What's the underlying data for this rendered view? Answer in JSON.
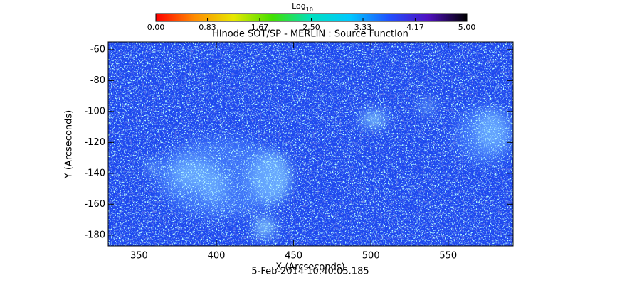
{
  "chart_data": {
    "type": "image",
    "title": "Hinode SOT/SP - MERLIN : Source Function",
    "x_label": "X (Arcseconds)",
    "y_label": "Y (Arcseconds)",
    "footer": "5-Feb-2014 10:40:05.185",
    "xlim": [
      330,
      592
    ],
    "xticks": [
      350,
      400,
      450,
      500,
      550
    ],
    "ylim": [
      -187,
      -55
    ],
    "yticks": [
      -180,
      -160,
      -140,
      -120,
      -100,
      -80,
      -60
    ],
    "colorbar": {
      "label": "Log",
      "label_subscript": "10",
      "clim": [
        0,
        5
      ],
      "ticks": [
        {
          "value": 0,
          "label": "0.00"
        },
        {
          "value": 0.83,
          "label": "0.83"
        },
        {
          "value": 1.67,
          "label": "1.67"
        },
        {
          "value": 2.5,
          "label": "2.50"
        },
        {
          "value": 3.33,
          "label": "3.33"
        },
        {
          "value": 4.17,
          "label": "4.17"
        },
        {
          "value": 5,
          "label": "5.00"
        }
      ],
      "colors": [
        "#ff0000",
        "#ff8c00",
        "#e8e800",
        "#40e000",
        "#00e0c0",
        "#00c8ff",
        "#2050ff",
        "#5010c0",
        "#000000"
      ]
    }
  }
}
